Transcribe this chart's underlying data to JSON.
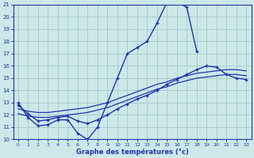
{
  "xlabel": "Graphe des températures (°c)",
  "bg_color": "#cce8e8",
  "grid_color": "#aacccc",
  "line_color": "#2233aa",
  "xlim": [
    -0.5,
    23.5
  ],
  "ylim": [
    10,
    21
  ],
  "yticks": [
    10,
    11,
    12,
    13,
    14,
    15,
    16,
    17,
    18,
    19,
    20,
    21
  ],
  "xticks": [
    0,
    1,
    2,
    3,
    4,
    5,
    6,
    7,
    8,
    9,
    10,
    11,
    12,
    13,
    14,
    15,
    16,
    17,
    18,
    19,
    20,
    21,
    22,
    23
  ],
  "curve_main": [
    [
      0,
      13.0
    ],
    [
      1,
      11.8
    ],
    [
      2,
      11.1
    ],
    [
      3,
      11.2
    ],
    [
      4,
      11.6
    ],
    [
      5,
      11.6
    ],
    [
      6,
      10.5
    ],
    [
      7,
      10.0
    ],
    [
      8,
      11.0
    ],
    [
      9,
      13.0
    ],
    [
      10,
      15.0
    ],
    [
      11,
      17.0
    ],
    [
      12,
      17.5
    ],
    [
      13,
      18.0
    ],
    [
      14,
      19.5
    ],
    [
      15,
      21.2
    ],
    [
      16,
      21.2
    ],
    [
      17,
      20.8
    ],
    [
      18,
      17.2
    ],
    [
      19,
      null
    ],
    [
      20,
      null
    ],
    [
      21,
      null
    ],
    [
      22,
      null
    ],
    [
      23,
      null
    ]
  ],
  "curve_peaked2": [
    [
      0,
      12.8
    ],
    [
      1,
      12.1
    ],
    [
      2,
      11.5
    ],
    [
      3,
      11.6
    ],
    [
      4,
      11.8
    ],
    [
      5,
      11.9
    ],
    [
      6,
      11.5
    ],
    [
      7,
      11.3
    ],
    [
      8,
      11.6
    ],
    [
      9,
      12.0
    ],
    [
      10,
      12.5
    ],
    [
      11,
      12.9
    ],
    [
      12,
      13.3
    ],
    [
      13,
      13.6
    ],
    [
      14,
      14.0
    ],
    [
      15,
      14.5
    ],
    [
      16,
      14.9
    ],
    [
      17,
      15.3
    ],
    [
      18,
      15.7
    ],
    [
      19,
      16.0
    ],
    [
      20,
      15.9
    ],
    [
      21,
      15.3
    ],
    [
      22,
      15.0
    ],
    [
      23,
      14.9
    ]
  ],
  "curve_smooth1": [
    [
      0,
      12.5
    ],
    [
      1,
      12.3
    ],
    [
      2,
      12.2
    ],
    [
      3,
      12.2
    ],
    [
      4,
      12.3
    ],
    [
      5,
      12.4
    ],
    [
      6,
      12.5
    ],
    [
      7,
      12.6
    ],
    [
      8,
      12.8
    ],
    [
      9,
      13.0
    ],
    [
      10,
      13.3
    ],
    [
      11,
      13.6
    ],
    [
      12,
      13.9
    ],
    [
      13,
      14.2
    ],
    [
      14,
      14.5
    ],
    [
      15,
      14.7
    ],
    [
      16,
      15.0
    ],
    [
      17,
      15.2
    ],
    [
      18,
      15.4
    ],
    [
      19,
      15.5
    ],
    [
      20,
      15.6
    ],
    [
      21,
      15.7
    ],
    [
      22,
      15.7
    ],
    [
      23,
      15.6
    ]
  ],
  "curve_smooth2": [
    [
      0,
      12.1
    ],
    [
      1,
      11.9
    ],
    [
      2,
      11.8
    ],
    [
      3,
      11.8
    ],
    [
      4,
      11.9
    ],
    [
      5,
      12.0
    ],
    [
      6,
      12.1
    ],
    [
      7,
      12.2
    ],
    [
      8,
      12.4
    ],
    [
      9,
      12.6
    ],
    [
      10,
      12.9
    ],
    [
      11,
      13.2
    ],
    [
      12,
      13.5
    ],
    [
      13,
      13.8
    ],
    [
      14,
      14.1
    ],
    [
      15,
      14.3
    ],
    [
      16,
      14.6
    ],
    [
      17,
      14.8
    ],
    [
      18,
      15.0
    ],
    [
      19,
      15.1
    ],
    [
      20,
      15.2
    ],
    [
      21,
      15.3
    ],
    [
      22,
      15.3
    ],
    [
      23,
      15.2
    ]
  ]
}
